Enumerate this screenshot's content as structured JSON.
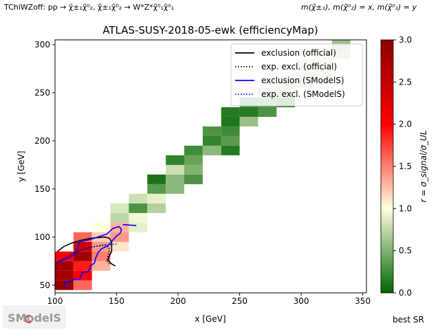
{
  "header": {
    "process": "TChiWZoff: pp → χ̃±₁χ̃⁰₂, χ̃±₁χ̃⁰₂ → W*Z*χ̃⁰₁χ̃⁰₁",
    "masses": "m(χ̃±₁), m(χ̃⁰₂) = x, m(χ̃⁰₁) = y"
  },
  "footer": {
    "best_sr": "best SR",
    "logo_text": "SModelS"
  },
  "colors": {
    "exclusion_official": "#000000",
    "exclusion_smodels": "#0000ff"
  },
  "chart_data": {
    "type": "heatmap",
    "title": "ATLAS-SUSY-2018-05-ewk (efficiencyMap)",
    "xlabel": "x [GeV]",
    "ylabel": "y [GeV]",
    "xlim": [
      100,
      353
    ],
    "ylim": [
      42,
      305
    ],
    "xticks": [
      100,
      150,
      200,
      250,
      300,
      350
    ],
    "yticks": [
      50,
      100,
      150,
      200,
      250,
      300
    ],
    "cell_size": [
      15,
      10
    ],
    "cells": [
      {
        "x": 100,
        "y": 45,
        "r": 2.9
      },
      {
        "x": 115,
        "y": 45,
        "r": 1.6
      },
      {
        "x": 100,
        "y": 55,
        "r": 2.8
      },
      {
        "x": 115,
        "y": 55,
        "r": 2.0
      },
      {
        "x": 100,
        "y": 65,
        "r": 2.8
      },
      {
        "x": 115,
        "y": 65,
        "r": 1.9
      },
      {
        "x": 130,
        "y": 65,
        "r": 1.3
      },
      {
        "x": 100,
        "y": 75,
        "r": 2.0
      },
      {
        "x": 115,
        "y": 75,
        "r": 2.8
      },
      {
        "x": 130,
        "y": 75,
        "r": 1.5
      },
      {
        "x": 115,
        "y": 85,
        "r": 2.4
      },
      {
        "x": 130,
        "y": 85,
        "r": 1.4
      },
      {
        "x": 145,
        "y": 85,
        "r": 1.1
      },
      {
        "x": 115,
        "y": 95,
        "r": 1.6
      },
      {
        "x": 130,
        "y": 95,
        "r": 1.2
      },
      {
        "x": 145,
        "y": 95,
        "r": 1.4
      },
      {
        "x": 130,
        "y": 105,
        "r": 1.0
      },
      {
        "x": 145,
        "y": 105,
        "r": 1.3
      },
      {
        "x": 160,
        "y": 105,
        "r": 0.9
      },
      {
        "x": 145,
        "y": 115,
        "r": 0.75
      },
      {
        "x": 160,
        "y": 115,
        "r": 0.95
      },
      {
        "x": 145,
        "y": 125,
        "r": 0.85
      },
      {
        "x": 160,
        "y": 125,
        "r": 0.3
      },
      {
        "x": 175,
        "y": 125,
        "r": 0.7
      },
      {
        "x": 160,
        "y": 135,
        "r": 0.8
      },
      {
        "x": 175,
        "y": 135,
        "r": 0.9
      },
      {
        "x": 175,
        "y": 145,
        "r": 0.35
      },
      {
        "x": 190,
        "y": 145,
        "r": 0.55
      },
      {
        "x": 175,
        "y": 155,
        "r": 0.1
      },
      {
        "x": 190,
        "y": 155,
        "r": 0.55
      },
      {
        "x": 205,
        "y": 155,
        "r": 0.3
      },
      {
        "x": 190,
        "y": 165,
        "r": 0.8
      },
      {
        "x": 205,
        "y": 165,
        "r": 0.5
      },
      {
        "x": 190,
        "y": 175,
        "r": 0.2
      },
      {
        "x": 205,
        "y": 175,
        "r": 0.4
      },
      {
        "x": 205,
        "y": 185,
        "r": 0.25
      },
      {
        "x": 220,
        "y": 185,
        "r": 0.55
      },
      {
        "x": 235,
        "y": 185,
        "r": 0.15
      },
      {
        "x": 220,
        "y": 195,
        "r": 0.2
      },
      {
        "x": 235,
        "y": 195,
        "r": 0.35
      },
      {
        "x": 220,
        "y": 205,
        "r": 0.3
      },
      {
        "x": 235,
        "y": 205,
        "r": 0.25
      },
      {
        "x": 235,
        "y": 215,
        "r": 0.12
      },
      {
        "x": 250,
        "y": 215,
        "r": 0.6
      },
      {
        "x": 235,
        "y": 225,
        "r": 0.15
      },
      {
        "x": 250,
        "y": 225,
        "r": 0.15
      },
      {
        "x": 265,
        "y": 225,
        "r": 0.3
      },
      {
        "x": 250,
        "y": 235,
        "r": 0.25
      },
      {
        "x": 265,
        "y": 235,
        "r": 0.3
      },
      {
        "x": 280,
        "y": 235,
        "r": 0.12
      },
      {
        "x": 265,
        "y": 245,
        "r": 0.65
      },
      {
        "x": 280,
        "y": 245,
        "r": 0.65
      },
      {
        "x": 280,
        "y": 255,
        "r": 0.7
      },
      {
        "x": 295,
        "y": 255,
        "r": 0.75
      },
      {
        "x": 295,
        "y": 265,
        "r": 0.75
      },
      {
        "x": 310,
        "y": 265,
        "r": 0.75
      },
      {
        "x": 295,
        "y": 275,
        "r": 0.8
      },
      {
        "x": 310,
        "y": 275,
        "r": 0.8
      },
      {
        "x": 310,
        "y": 285,
        "r": 0.8
      },
      {
        "x": 325,
        "y": 285,
        "r": 0.7
      },
      {
        "x": 325,
        "y": 295,
        "r": 0.6
      },
      {
        "x": 325,
        "y": 305,
        "r": 0.1
      },
      {
        "x": 340,
        "y": 305,
        "r": 0.1
      }
    ],
    "series": [
      {
        "name": "exclusion (official)",
        "style": "solid",
        "color": "#000000",
        "points": [
          [
            102,
            85
          ],
          [
            107,
            90
          ],
          [
            114,
            94
          ],
          [
            122,
            97
          ],
          [
            131,
            99
          ],
          [
            140,
            100
          ],
          [
            144,
            99
          ],
          [
            146,
            95
          ],
          [
            146,
            85
          ],
          [
            144,
            80
          ],
          [
            143,
            76
          ],
          [
            146,
            72
          ],
          [
            149,
            70
          ]
        ]
      },
      {
        "name": "exp. excl. (official)",
        "style": "dotted",
        "color": "#000000",
        "points": [
          [
            103,
            75
          ],
          [
            108,
            78
          ],
          [
            114,
            82
          ],
          [
            120,
            86
          ],
          [
            128,
            89
          ],
          [
            135,
            91
          ],
          [
            141,
            92
          ],
          [
            144,
            89
          ],
          [
            144,
            84
          ],
          [
            143,
            80
          ],
          [
            142,
            75
          ],
          [
            145,
            71
          ]
        ]
      },
      {
        "name": "exclusion (SModelS)",
        "style": "solid",
        "color": "#0000ff",
        "points": [
          [
            108,
            47
          ],
          [
            108,
            53
          ],
          [
            113,
            54
          ],
          [
            115,
            56
          ],
          [
            120,
            56
          ],
          [
            122,
            63
          ],
          [
            127,
            64
          ],
          [
            129,
            70
          ],
          [
            132,
            73
          ],
          [
            133,
            78
          ],
          [
            135,
            84
          ],
          [
            138,
            88
          ],
          [
            143,
            91
          ],
          [
            147,
            97
          ],
          [
            150,
            101
          ],
          [
            153,
            104
          ],
          [
            154,
            108
          ],
          [
            152,
            111
          ],
          [
            147,
            109
          ],
          [
            142,
            103
          ],
          [
            137,
            101
          ],
          [
            130,
            98
          ],
          [
            124,
            96
          ],
          [
            120,
            95
          ],
          [
            118,
            88
          ],
          [
            116,
            82
          ],
          [
            111,
            78
          ],
          [
            104,
            75
          ],
          [
            101,
            73
          ]
        ]
      },
      {
        "name": "exclusion (SModelS)",
        "style": "solid",
        "color": "#0000ff",
        "legend": false,
        "points": [
          [
            155,
            113
          ],
          [
            166,
            112
          ]
        ]
      },
      {
        "name": "exp. excl. (SModelS)",
        "style": "dotted",
        "color": "#0000ff",
        "points": [
          [
            103,
            74
          ],
          [
            110,
            80
          ],
          [
            117,
            84
          ],
          [
            124,
            88
          ],
          [
            131,
            90
          ],
          [
            138,
            91
          ],
          [
            144,
            92
          ],
          [
            150,
            93
          ]
        ]
      }
    ],
    "legend_entries": [
      {
        "label": "exclusion (official)",
        "color": "#000000",
        "style": "solid"
      },
      {
        "label": "exp. excl. (official)",
        "color": "#000000",
        "style": "dotted"
      },
      {
        "label": "exclusion (SModelS)",
        "color": "#0000ff",
        "style": "solid"
      },
      {
        "label": "exp. excl. (SModelS)",
        "color": "#0000ff",
        "style": "dotted"
      }
    ],
    "legend_placement": "top-right",
    "grid": false,
    "colorbar": {
      "label": "r = σ_signal/σ_UL",
      "range": [
        0.0,
        3.0
      ],
      "ticks": [
        "0.0",
        "0.5",
        "1.0",
        "1.5",
        "2.0",
        "2.5",
        "3.0"
      ],
      "colormap": "green-white-red"
    }
  }
}
